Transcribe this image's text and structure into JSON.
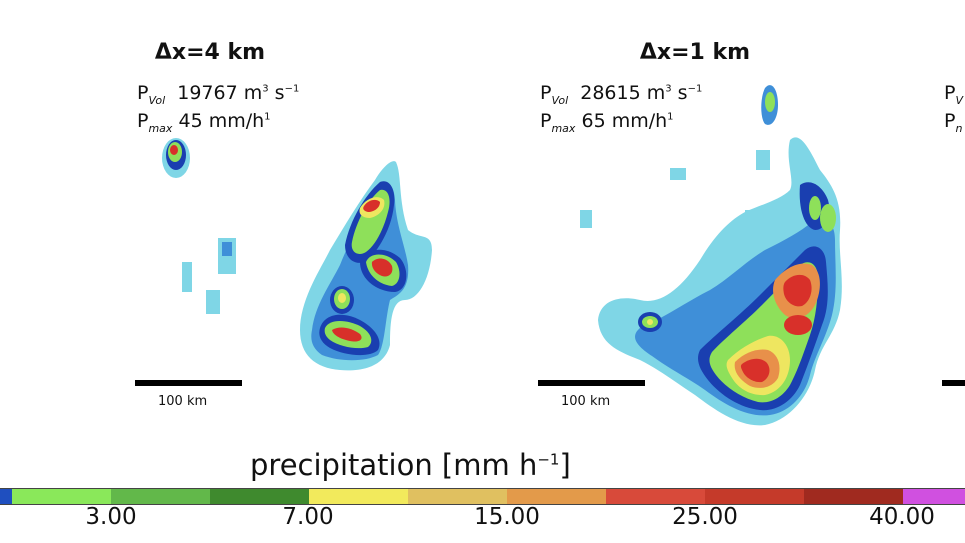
{
  "panels": [
    {
      "title": "Δx=4 km",
      "pvol_label": "P",
      "pvol_sub": "Vol",
      "pvol_value": "19767 m",
      "pvol_unit_sup": "3",
      "pvol_unit_tail": " s",
      "pvol_unit_tail_sup": "−1",
      "pmax_label": "P",
      "pmax_sub": "max",
      "pmax_value": "45 mm/h",
      "pmax_sup": "1",
      "scale_label": "100 km"
    },
    {
      "title": "Δx=1 km",
      "pvol_label": "P",
      "pvol_sub": "Vol",
      "pvol_value": "28615 m",
      "pvol_unit_sup": "3",
      "pvol_unit_tail": " s",
      "pvol_unit_tail_sup": "−1",
      "pmax_label": "P",
      "pmax_sub": "max",
      "pmax_value": "65 mm/h",
      "pmax_sup": "1",
      "scale_label": "100 km"
    },
    {
      "pvol_label": "P",
      "pvol_sub": "V",
      "pmax_label": "P",
      "pmax_sub": "n"
    }
  ],
  "colorbar": {
    "label": "precipitation [mm h",
    "label_sup": "−1",
    "label_close": "]",
    "ticks": [
      "3.00",
      "7.00",
      "15.00",
      "25.00",
      "40.00"
    ],
    "colors": [
      "#1f4fbf",
      "#8ae85a",
      "#62b84a",
      "#3f8a2e",
      "#f2ea5c",
      "#e0c060",
      "#e39a4a",
      "#d84a3a",
      "#c53a2a",
      "#a02a1f",
      "#d050e0"
    ]
  },
  "map_colors": {
    "light": "#7fd6e6",
    "mid": "#3f8fd8",
    "dark": "#1a3fb0",
    "green": "#8ee05a",
    "yellow": "#eee660",
    "orange": "#e8904a",
    "red": "#d8302a"
  }
}
